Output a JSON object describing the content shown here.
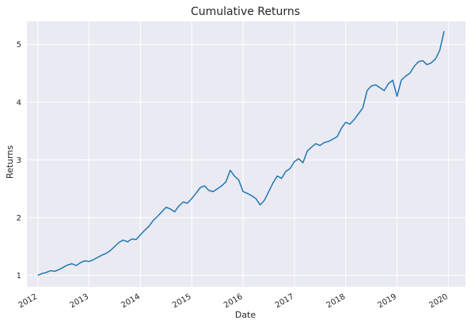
{
  "chart_data": {
    "type": "line",
    "title": "Cumulative Returns",
    "xlabel": "Date",
    "ylabel": "Returns",
    "grid": true,
    "legend": "none",
    "x_ticks": [
      "2012",
      "2013",
      "2014",
      "2015",
      "2016",
      "2017",
      "2018",
      "2019",
      "2020"
    ],
    "y_ticks": [
      1,
      2,
      3,
      4,
      5
    ],
    "xlim": [
      "2011-10-15",
      "2020-05-01"
    ],
    "ylim": [
      0.8,
      5.4
    ],
    "colors": {
      "line": "#1f77b4",
      "background": "#eaeaf2",
      "grid": "#ffffff"
    },
    "series": [
      {
        "x": [
          "2012-01",
          "2012-02",
          "2012-03",
          "2012-04",
          "2012-05",
          "2012-06",
          "2012-07",
          "2012-08",
          "2012-09",
          "2012-10",
          "2012-11",
          "2012-12",
          "2013-01",
          "2013-02",
          "2013-03",
          "2013-04",
          "2013-05",
          "2013-06",
          "2013-07",
          "2013-08",
          "2013-09",
          "2013-10",
          "2013-11",
          "2013-12",
          "2014-01",
          "2014-02",
          "2014-03",
          "2014-04",
          "2014-05",
          "2014-06",
          "2014-07",
          "2014-08",
          "2014-09",
          "2014-10",
          "2014-11",
          "2014-12",
          "2015-01",
          "2015-02",
          "2015-03",
          "2015-04",
          "2015-05",
          "2015-06",
          "2015-07",
          "2015-08",
          "2015-09",
          "2015-10",
          "2015-11",
          "2015-12",
          "2016-01",
          "2016-02",
          "2016-03",
          "2016-04",
          "2016-05",
          "2016-06",
          "2016-07",
          "2016-08",
          "2016-09",
          "2016-10",
          "2016-11",
          "2016-12",
          "2017-01",
          "2017-02",
          "2017-03",
          "2017-04",
          "2017-05",
          "2017-06",
          "2017-07",
          "2017-08",
          "2017-09",
          "2017-10",
          "2017-11",
          "2017-12",
          "2018-01",
          "2018-02",
          "2018-03",
          "2018-04",
          "2018-05",
          "2018-06",
          "2018-07",
          "2018-08",
          "2018-09",
          "2018-10",
          "2018-11",
          "2018-12",
          "2019-01",
          "2019-02",
          "2019-03",
          "2019-04",
          "2019-05",
          "2019-06",
          "2019-07",
          "2019-08",
          "2019-09",
          "2019-10",
          "2019-11",
          "2019-12"
        ],
        "values": [
          1.0,
          1.03,
          1.05,
          1.08,
          1.07,
          1.1,
          1.14,
          1.18,
          1.2,
          1.17,
          1.22,
          1.25,
          1.24,
          1.27,
          1.31,
          1.35,
          1.38,
          1.43,
          1.5,
          1.57,
          1.61,
          1.58,
          1.63,
          1.62,
          1.7,
          1.78,
          1.85,
          1.95,
          2.02,
          2.1,
          2.18,
          2.15,
          2.1,
          2.2,
          2.27,
          2.25,
          2.33,
          2.42,
          2.52,
          2.55,
          2.47,
          2.45,
          2.5,
          2.55,
          2.62,
          2.82,
          2.72,
          2.65,
          2.45,
          2.42,
          2.38,
          2.33,
          2.22,
          2.3,
          2.45,
          2.6,
          2.72,
          2.68,
          2.8,
          2.85,
          2.97,
          3.02,
          2.95,
          3.15,
          3.22,
          3.28,
          3.25,
          3.3,
          3.32,
          3.36,
          3.4,
          3.55,
          3.65,
          3.62,
          3.7,
          3.8,
          3.9,
          4.2,
          4.28,
          4.3,
          4.25,
          4.2,
          4.32,
          4.38,
          4.1,
          4.38,
          4.45,
          4.5,
          4.62,
          4.7,
          4.72,
          4.65,
          4.68,
          4.75,
          4.9,
          5.23
        ]
      }
    ]
  }
}
